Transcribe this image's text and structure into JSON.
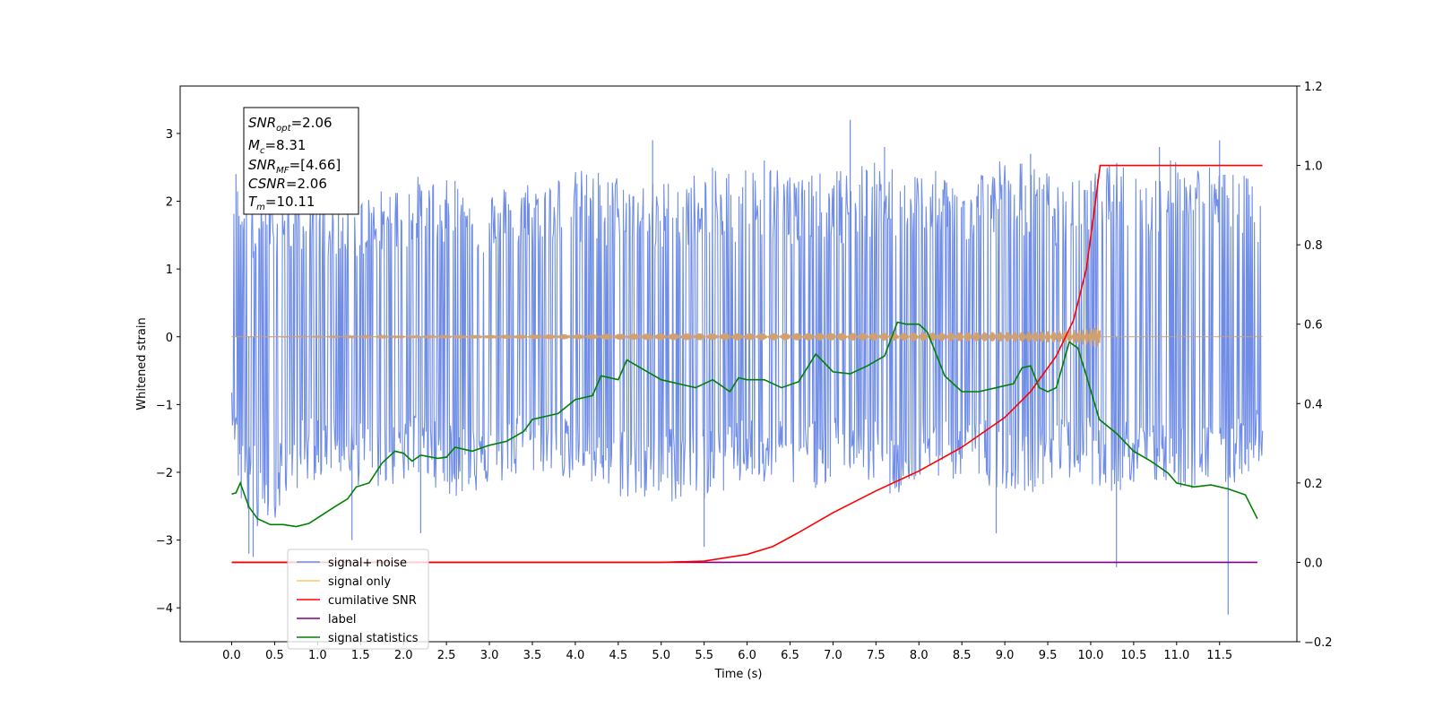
{
  "chart_data": {
    "type": "line",
    "xlabel": "Time (s)",
    "ylabel": "Whitened strain",
    "xlim": [
      -0.6,
      12.4
    ],
    "ylim": [
      -4.5,
      3.7
    ],
    "y2lim": [
      -0.2,
      1.2
    ],
    "x_ticks": [
      "0.0",
      "0.5",
      "1.0",
      "1.5",
      "2.0",
      "2.5",
      "3.0",
      "3.5",
      "4.0",
      "4.5",
      "5.0",
      "5.5",
      "6.0",
      "6.5",
      "7.0",
      "7.5",
      "8.0",
      "8.5",
      "9.0",
      "9.5",
      "10.0",
      "10.5",
      "11.0",
      "11.5"
    ],
    "y_ticks": [
      "3",
      "2",
      "1",
      "0",
      "−1",
      "−2",
      "−3",
      "−4"
    ],
    "y2_ticks": [
      "1.2",
      "1.0",
      "0.8",
      "0.6",
      "0.4",
      "0.2",
      "0.0",
      "−0.2"
    ],
    "legend": {
      "placement": "lower-left",
      "entries": [
        {
          "label": "signal+ noise",
          "color": "#6f8de6"
        },
        {
          "label": "signal only",
          "color": "#ffc966"
        },
        {
          "label": "cumilative SNR",
          "color": "#ff0000"
        },
        {
          "label": "label",
          "color": "#800080"
        },
        {
          "label": "signal statistics",
          "color": "#008000"
        }
      ]
    },
    "stats_box": {
      "lines": [
        {
          "main": "SNR",
          "sub": "opt",
          "value": "=2.06"
        },
        {
          "main": "M",
          "sub": "c",
          "value": "=8.31"
        },
        {
          "main": "SNR",
          "sub": "MF",
          "value": "=[4.66]"
        },
        {
          "main": "CSNR",
          "sub": "",
          "value": "=2.06"
        },
        {
          "main": "T",
          "sub": "m",
          "value": "=10.11"
        }
      ]
    },
    "series": [
      {
        "name": "signal+ noise",
        "axis": "left",
        "kind": "noise_band",
        "t_range": [
          0.0,
          12.0
        ],
        "color": "#6f8de6",
        "upper_envelope": [
          [
            0.0,
            1.4
          ],
          [
            0.05,
            2.4
          ],
          [
            0.3,
            2.0
          ],
          [
            0.7,
            2.2
          ],
          [
            1.0,
            2.0
          ],
          [
            1.6,
            2.1
          ],
          [
            2.1,
            2.4
          ],
          [
            2.6,
            2.3
          ],
          [
            3.0,
            2.2
          ],
          [
            3.6,
            2.4
          ],
          [
            4.2,
            2.5
          ],
          [
            4.9,
            2.3
          ],
          [
            5.6,
            2.5
          ],
          [
            6.2,
            2.6
          ],
          [
            6.8,
            2.4
          ],
          [
            7.4,
            2.6
          ],
          [
            7.9,
            2.5
          ],
          [
            8.5,
            2.4
          ],
          [
            9.0,
            2.7
          ],
          [
            9.4,
            2.5
          ],
          [
            9.8,
            2.3
          ],
          [
            10.3,
            2.6
          ],
          [
            10.7,
            2.4
          ],
          [
            11.0,
            2.7
          ],
          [
            11.5,
            2.5
          ],
          [
            12.0,
            2.3
          ]
        ],
        "lower_envelope": [
          [
            0.0,
            -1.2
          ],
          [
            0.1,
            -2.5
          ],
          [
            0.3,
            -3.0
          ],
          [
            0.8,
            -2.2
          ],
          [
            1.2,
            -2.0
          ],
          [
            1.6,
            -2.3
          ],
          [
            2.2,
            -2.1
          ],
          [
            2.6,
            -2.4
          ],
          [
            3.1,
            -2.2
          ],
          [
            3.7,
            -2.0
          ],
          [
            4.2,
            -2.3
          ],
          [
            4.9,
            -2.5
          ],
          [
            5.5,
            -2.4
          ],
          [
            6.0,
            -2.2
          ],
          [
            6.7,
            -2.3
          ],
          [
            7.2,
            -2.0
          ],
          [
            7.7,
            -2.4
          ],
          [
            8.2,
            -2.1
          ],
          [
            8.8,
            -2.2
          ],
          [
            9.3,
            -2.3
          ],
          [
            9.8,
            -2.1
          ],
          [
            10.3,
            -2.3
          ],
          [
            10.8,
            -2.2
          ],
          [
            11.3,
            -2.3
          ],
          [
            11.7,
            -2.2
          ],
          [
            12.0,
            -1.8
          ]
        ],
        "spikes": [
          [
            0.05,
            2.4
          ],
          [
            0.2,
            -3.2
          ],
          [
            0.25,
            -3.25
          ],
          [
            1.4,
            -3.0
          ],
          [
            2.2,
            -2.9
          ],
          [
            2.6,
            2.3
          ],
          [
            4.9,
            2.9
          ],
          [
            5.5,
            -3.1
          ],
          [
            6.2,
            2.6
          ],
          [
            7.2,
            3.2
          ],
          [
            7.6,
            2.8
          ],
          [
            8.9,
            -2.9
          ],
          [
            9.3,
            2.7
          ],
          [
            10.3,
            -3.4
          ],
          [
            10.8,
            2.8
          ],
          [
            11.6,
            -4.1
          ],
          [
            11.5,
            2.9
          ]
        ]
      },
      {
        "name": "signal only",
        "axis": "left",
        "kind": "chirp",
        "t_range": [
          0.0,
          10.11
        ],
        "color": "#d0a070",
        "max_amplitude": 0.2
      },
      {
        "name": "cumilative SNR",
        "axis": "right",
        "color": "#ff0000",
        "points": [
          [
            0.0,
            0.0
          ],
          [
            5.0,
            0.0
          ],
          [
            5.5,
            0.003
          ],
          [
            6.0,
            0.02
          ],
          [
            6.3,
            0.04
          ],
          [
            6.6,
            0.075
          ],
          [
            7.0,
            0.125
          ],
          [
            7.5,
            0.18
          ],
          [
            8.0,
            0.23
          ],
          [
            8.5,
            0.29
          ],
          [
            9.0,
            0.365
          ],
          [
            9.3,
            0.43
          ],
          [
            9.6,
            0.52
          ],
          [
            9.8,
            0.61
          ],
          [
            9.95,
            0.74
          ],
          [
            10.05,
            0.9
          ],
          [
            10.11,
            1.0
          ],
          [
            12.0,
            1.0
          ]
        ]
      },
      {
        "name": "label",
        "axis": "right",
        "color": "#800080",
        "points": [
          [
            0.0,
            0.0
          ],
          [
            11.94,
            0.0
          ]
        ]
      },
      {
        "name": "signal statistics",
        "axis": "right",
        "color": "#008000",
        "points": [
          [
            0.0,
            0.172
          ],
          [
            0.05,
            0.175
          ],
          [
            0.1,
            0.2
          ],
          [
            0.2,
            0.14
          ],
          [
            0.3,
            0.11
          ],
          [
            0.45,
            0.095
          ],
          [
            0.6,
            0.095
          ],
          [
            0.75,
            0.09
          ],
          [
            0.9,
            0.098
          ],
          [
            1.0,
            0.112
          ],
          [
            1.2,
            0.14
          ],
          [
            1.35,
            0.16
          ],
          [
            1.45,
            0.19
          ],
          [
            1.6,
            0.2
          ],
          [
            1.75,
            0.25
          ],
          [
            1.9,
            0.28
          ],
          [
            2.0,
            0.275
          ],
          [
            2.1,
            0.255
          ],
          [
            2.2,
            0.27
          ],
          [
            2.4,
            0.262
          ],
          [
            2.5,
            0.265
          ],
          [
            2.6,
            0.29
          ],
          [
            2.8,
            0.28
          ],
          [
            3.0,
            0.295
          ],
          [
            3.2,
            0.305
          ],
          [
            3.4,
            0.33
          ],
          [
            3.5,
            0.36
          ],
          [
            3.8,
            0.375
          ],
          [
            4.0,
            0.41
          ],
          [
            4.2,
            0.42
          ],
          [
            4.3,
            0.47
          ],
          [
            4.5,
            0.46
          ],
          [
            4.6,
            0.51
          ],
          [
            4.8,
            0.485
          ],
          [
            5.0,
            0.46
          ],
          [
            5.2,
            0.45
          ],
          [
            5.4,
            0.44
          ],
          [
            5.6,
            0.46
          ],
          [
            5.8,
            0.43
          ],
          [
            5.9,
            0.465
          ],
          [
            6.0,
            0.46
          ],
          [
            6.2,
            0.46
          ],
          [
            6.4,
            0.44
          ],
          [
            6.6,
            0.455
          ],
          [
            6.8,
            0.525
          ],
          [
            7.0,
            0.48
          ],
          [
            7.2,
            0.475
          ],
          [
            7.4,
            0.495
          ],
          [
            7.6,
            0.52
          ],
          [
            7.75,
            0.605
          ],
          [
            7.85,
            0.6
          ],
          [
            8.0,
            0.6
          ],
          [
            8.1,
            0.58
          ],
          [
            8.3,
            0.47
          ],
          [
            8.5,
            0.43
          ],
          [
            8.7,
            0.43
          ],
          [
            8.9,
            0.44
          ],
          [
            9.1,
            0.45
          ],
          [
            9.2,
            0.49
          ],
          [
            9.3,
            0.495
          ],
          [
            9.4,
            0.44
          ],
          [
            9.5,
            0.43
          ],
          [
            9.6,
            0.44
          ],
          [
            9.75,
            0.555
          ],
          [
            9.85,
            0.54
          ],
          [
            9.95,
            0.47
          ],
          [
            10.1,
            0.36
          ],
          [
            10.3,
            0.325
          ],
          [
            10.5,
            0.28
          ],
          [
            10.7,
            0.255
          ],
          [
            10.9,
            0.225
          ],
          [
            11.0,
            0.2
          ],
          [
            11.2,
            0.19
          ],
          [
            11.4,
            0.195
          ],
          [
            11.6,
            0.185
          ],
          [
            11.8,
            0.17
          ],
          [
            11.94,
            0.11
          ]
        ]
      }
    ]
  }
}
